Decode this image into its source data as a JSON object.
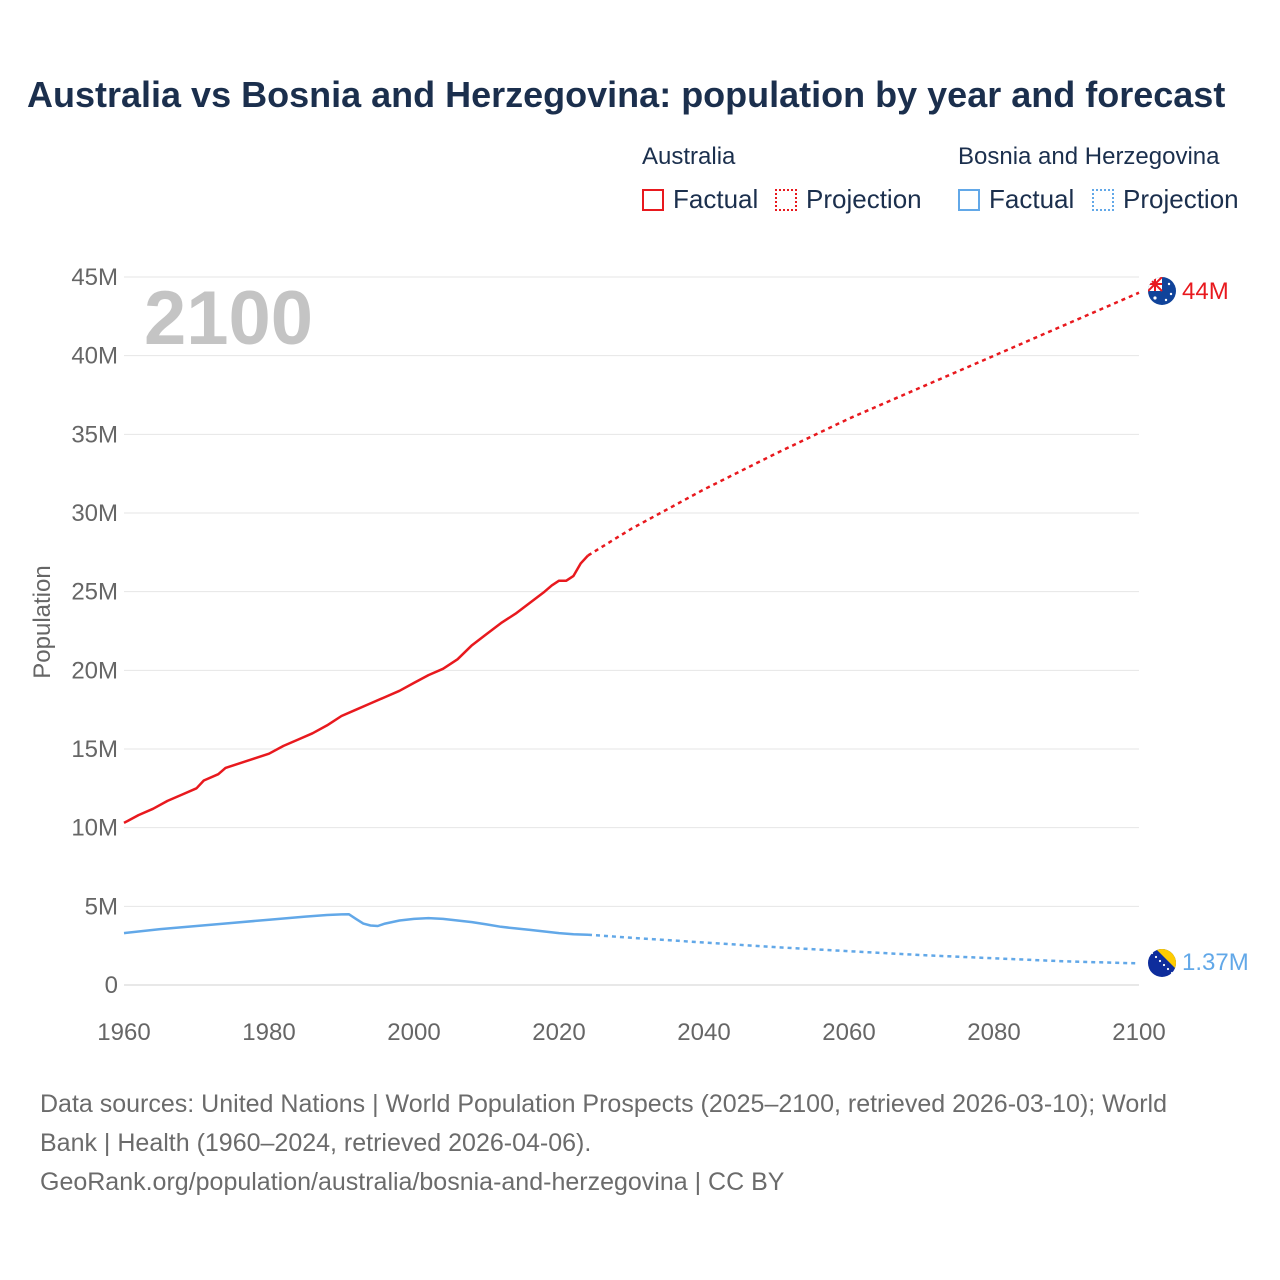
{
  "title": "Australia vs Bosnia and Herzegovina: population by year and forecast",
  "legend": {
    "australia": {
      "label": "Australia",
      "factual": "Factual",
      "projection": "Projection"
    },
    "bosnia": {
      "label": "Bosnia and Herzegovina",
      "factual": "Factual",
      "projection": "Projection"
    }
  },
  "colors": {
    "australia": "#e8191e",
    "bosnia": "#62a8e8",
    "grid": "#e6e6e6",
    "axis_text": "#666666",
    "year_watermark": "#c4c4c4"
  },
  "year_display": "2100",
  "sources": {
    "line1": "Data sources: United Nations | World Population Prospects (2025–2100, retrieved 2026-03-10); World",
    "line2": "Bank | Health (1960–2024, retrieved 2026-04-06).",
    "line3": "GeoRank.org/population/australia/bosnia-and-herzegovina | CC BY"
  },
  "chart_data": {
    "type": "line",
    "title": "Australia vs Bosnia and Herzegovina: population by year and forecast",
    "xlabel": "",
    "ylabel": "Population",
    "xlim": [
      1960,
      2100
    ],
    "ylim": [
      0,
      45000000
    ],
    "x_ticks": [
      1960,
      1980,
      2000,
      2020,
      2040,
      2060,
      2080,
      2100
    ],
    "x_tick_labels": [
      "1960",
      "1980",
      "2000",
      "2020",
      "2040",
      "2060",
      "2080",
      "2100"
    ],
    "y_ticks": [
      0,
      5000000,
      10000000,
      15000000,
      20000000,
      25000000,
      30000000,
      35000000,
      40000000,
      45000000
    ],
    "y_tick_labels": [
      "0",
      "5M",
      "10M",
      "15M",
      "20M",
      "25M",
      "30M",
      "35M",
      "40M",
      "45M"
    ],
    "series": [
      {
        "name": "Australia",
        "color": "#e8191e",
        "end_label": "44M",
        "factual": [
          [
            1960,
            10.3
          ],
          [
            1962,
            10.8
          ],
          [
            1964,
            11.2
          ],
          [
            1966,
            11.7
          ],
          [
            1968,
            12.1
          ],
          [
            1970,
            12.5
          ],
          [
            1971,
            13.0
          ],
          [
            1973,
            13.4
          ],
          [
            1974,
            13.8
          ],
          [
            1976,
            14.1
          ],
          [
            1978,
            14.4
          ],
          [
            1980,
            14.7
          ],
          [
            1982,
            15.2
          ],
          [
            1984,
            15.6
          ],
          [
            1986,
            16.0
          ],
          [
            1988,
            16.5
          ],
          [
            1990,
            17.1
          ],
          [
            1992,
            17.5
          ],
          [
            1994,
            17.9
          ],
          [
            1996,
            18.3
          ],
          [
            1998,
            18.7
          ],
          [
            2000,
            19.2
          ],
          [
            2002,
            19.7
          ],
          [
            2004,
            20.1
          ],
          [
            2006,
            20.7
          ],
          [
            2008,
            21.6
          ],
          [
            2010,
            22.3
          ],
          [
            2012,
            23.0
          ],
          [
            2014,
            23.6
          ],
          [
            2016,
            24.3
          ],
          [
            2018,
            25.0
          ],
          [
            2019,
            25.4
          ],
          [
            2020,
            25.7
          ],
          [
            2021,
            25.7
          ],
          [
            2022,
            26.0
          ],
          [
            2023,
            26.8
          ],
          [
            2024,
            27.3
          ]
        ],
        "projection": [
          [
            2024,
            27.3
          ],
          [
            2030,
            29.0
          ],
          [
            2040,
            31.5
          ],
          [
            2050,
            33.8
          ],
          [
            2060,
            36.0
          ],
          [
            2070,
            38.0
          ],
          [
            2080,
            40.0
          ],
          [
            2090,
            42.0
          ],
          [
            2100,
            44.0
          ]
        ]
      },
      {
        "name": "Bosnia and Herzegovina",
        "color": "#62a8e8",
        "end_label": "1.37M",
        "factual": [
          [
            1960,
            3.3
          ],
          [
            1965,
            3.55
          ],
          [
            1970,
            3.75
          ],
          [
            1975,
            3.95
          ],
          [
            1980,
            4.15
          ],
          [
            1985,
            4.35
          ],
          [
            1988,
            4.45
          ],
          [
            1990,
            4.49
          ],
          [
            1991,
            4.5
          ],
          [
            1992,
            4.2
          ],
          [
            1993,
            3.9
          ],
          [
            1994,
            3.78
          ],
          [
            1995,
            3.75
          ],
          [
            1996,
            3.9
          ],
          [
            1998,
            4.1
          ],
          [
            2000,
            4.2
          ],
          [
            2002,
            4.25
          ],
          [
            2004,
            4.2
          ],
          [
            2006,
            4.1
          ],
          [
            2008,
            4.0
          ],
          [
            2010,
            3.85
          ],
          [
            2012,
            3.7
          ],
          [
            2014,
            3.6
          ],
          [
            2016,
            3.5
          ],
          [
            2018,
            3.4
          ],
          [
            2020,
            3.3
          ],
          [
            2022,
            3.22
          ],
          [
            2024,
            3.2
          ]
        ],
        "projection": [
          [
            2024,
            3.2
          ],
          [
            2030,
            3.0
          ],
          [
            2040,
            2.7
          ],
          [
            2050,
            2.4
          ],
          [
            2060,
            2.15
          ],
          [
            2070,
            1.9
          ],
          [
            2080,
            1.7
          ],
          [
            2090,
            1.5
          ],
          [
            2100,
            1.37
          ]
        ]
      }
    ]
  }
}
